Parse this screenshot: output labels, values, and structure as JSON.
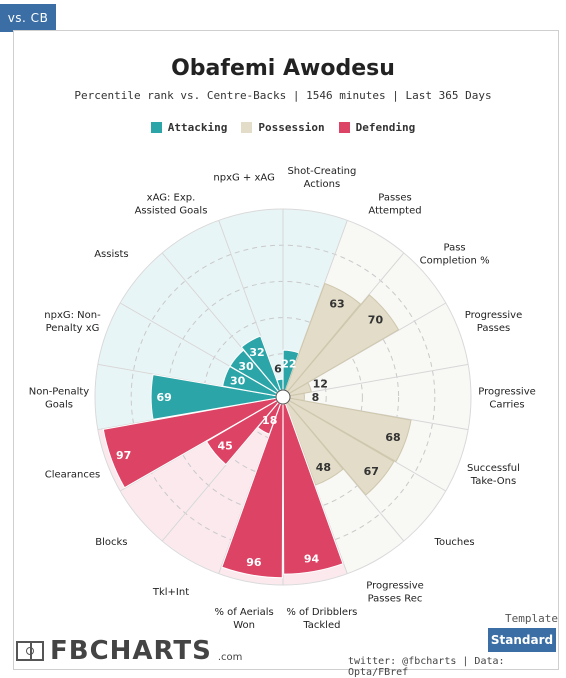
{
  "tab": {
    "label": "vs. CB"
  },
  "chart_data": {
    "type": "polar_bar",
    "title": "Obafemi Awodesu",
    "subtitle": "Percentile rank vs. Centre-Backs | 1546 minutes | Last 365 Days",
    "rlim": [
      0,
      100
    ],
    "legend": [
      {
        "name": "Attacking",
        "color": "#2ba5a8"
      },
      {
        "name": "Possession",
        "color": "#e2dcc8"
      },
      {
        "name": "Defending",
        "color": "#dc4365"
      }
    ],
    "categories": [
      "Shot-Creating\nActions",
      "Passes\nAttempted",
      "Pass\nCompletion %",
      "Progressive\nPasses",
      "Progressive\nCarries",
      "Successful\nTake-Ons",
      "Touches",
      "Progressive\nPasses Rec",
      "% of Dribblers\nTackled",
      "% of Aerials\nWon",
      "Tkl+Int",
      "Blocks",
      "Clearances",
      "Non-Penalty\nGoals",
      "npxG: Non-\nPenalty xG",
      "Assists",
      "xAG: Exp.\nAssisted Goals",
      "npxG + xAG"
    ],
    "groups": [
      "Attacking",
      "Possession",
      "Possession",
      "Possession",
      "Possession",
      "Possession",
      "Possession",
      "Possession",
      "Defending",
      "Defending",
      "Defending",
      "Defending",
      "Defending",
      "Attacking",
      "Attacking",
      "Attacking",
      "Attacking",
      "Attacking"
    ],
    "values": [
      22,
      63,
      70,
      12,
      8,
      68,
      67,
      48,
      94,
      96,
      18,
      45,
      97,
      69,
      30,
      30,
      32,
      6
    ]
  },
  "footer": {
    "brand": "FBCHARTS",
    "brand_domain": ".com",
    "template_label": "Template",
    "template_button": "Standard",
    "credit": "twitter: @fbcharts | Data: Opta/FBref"
  }
}
